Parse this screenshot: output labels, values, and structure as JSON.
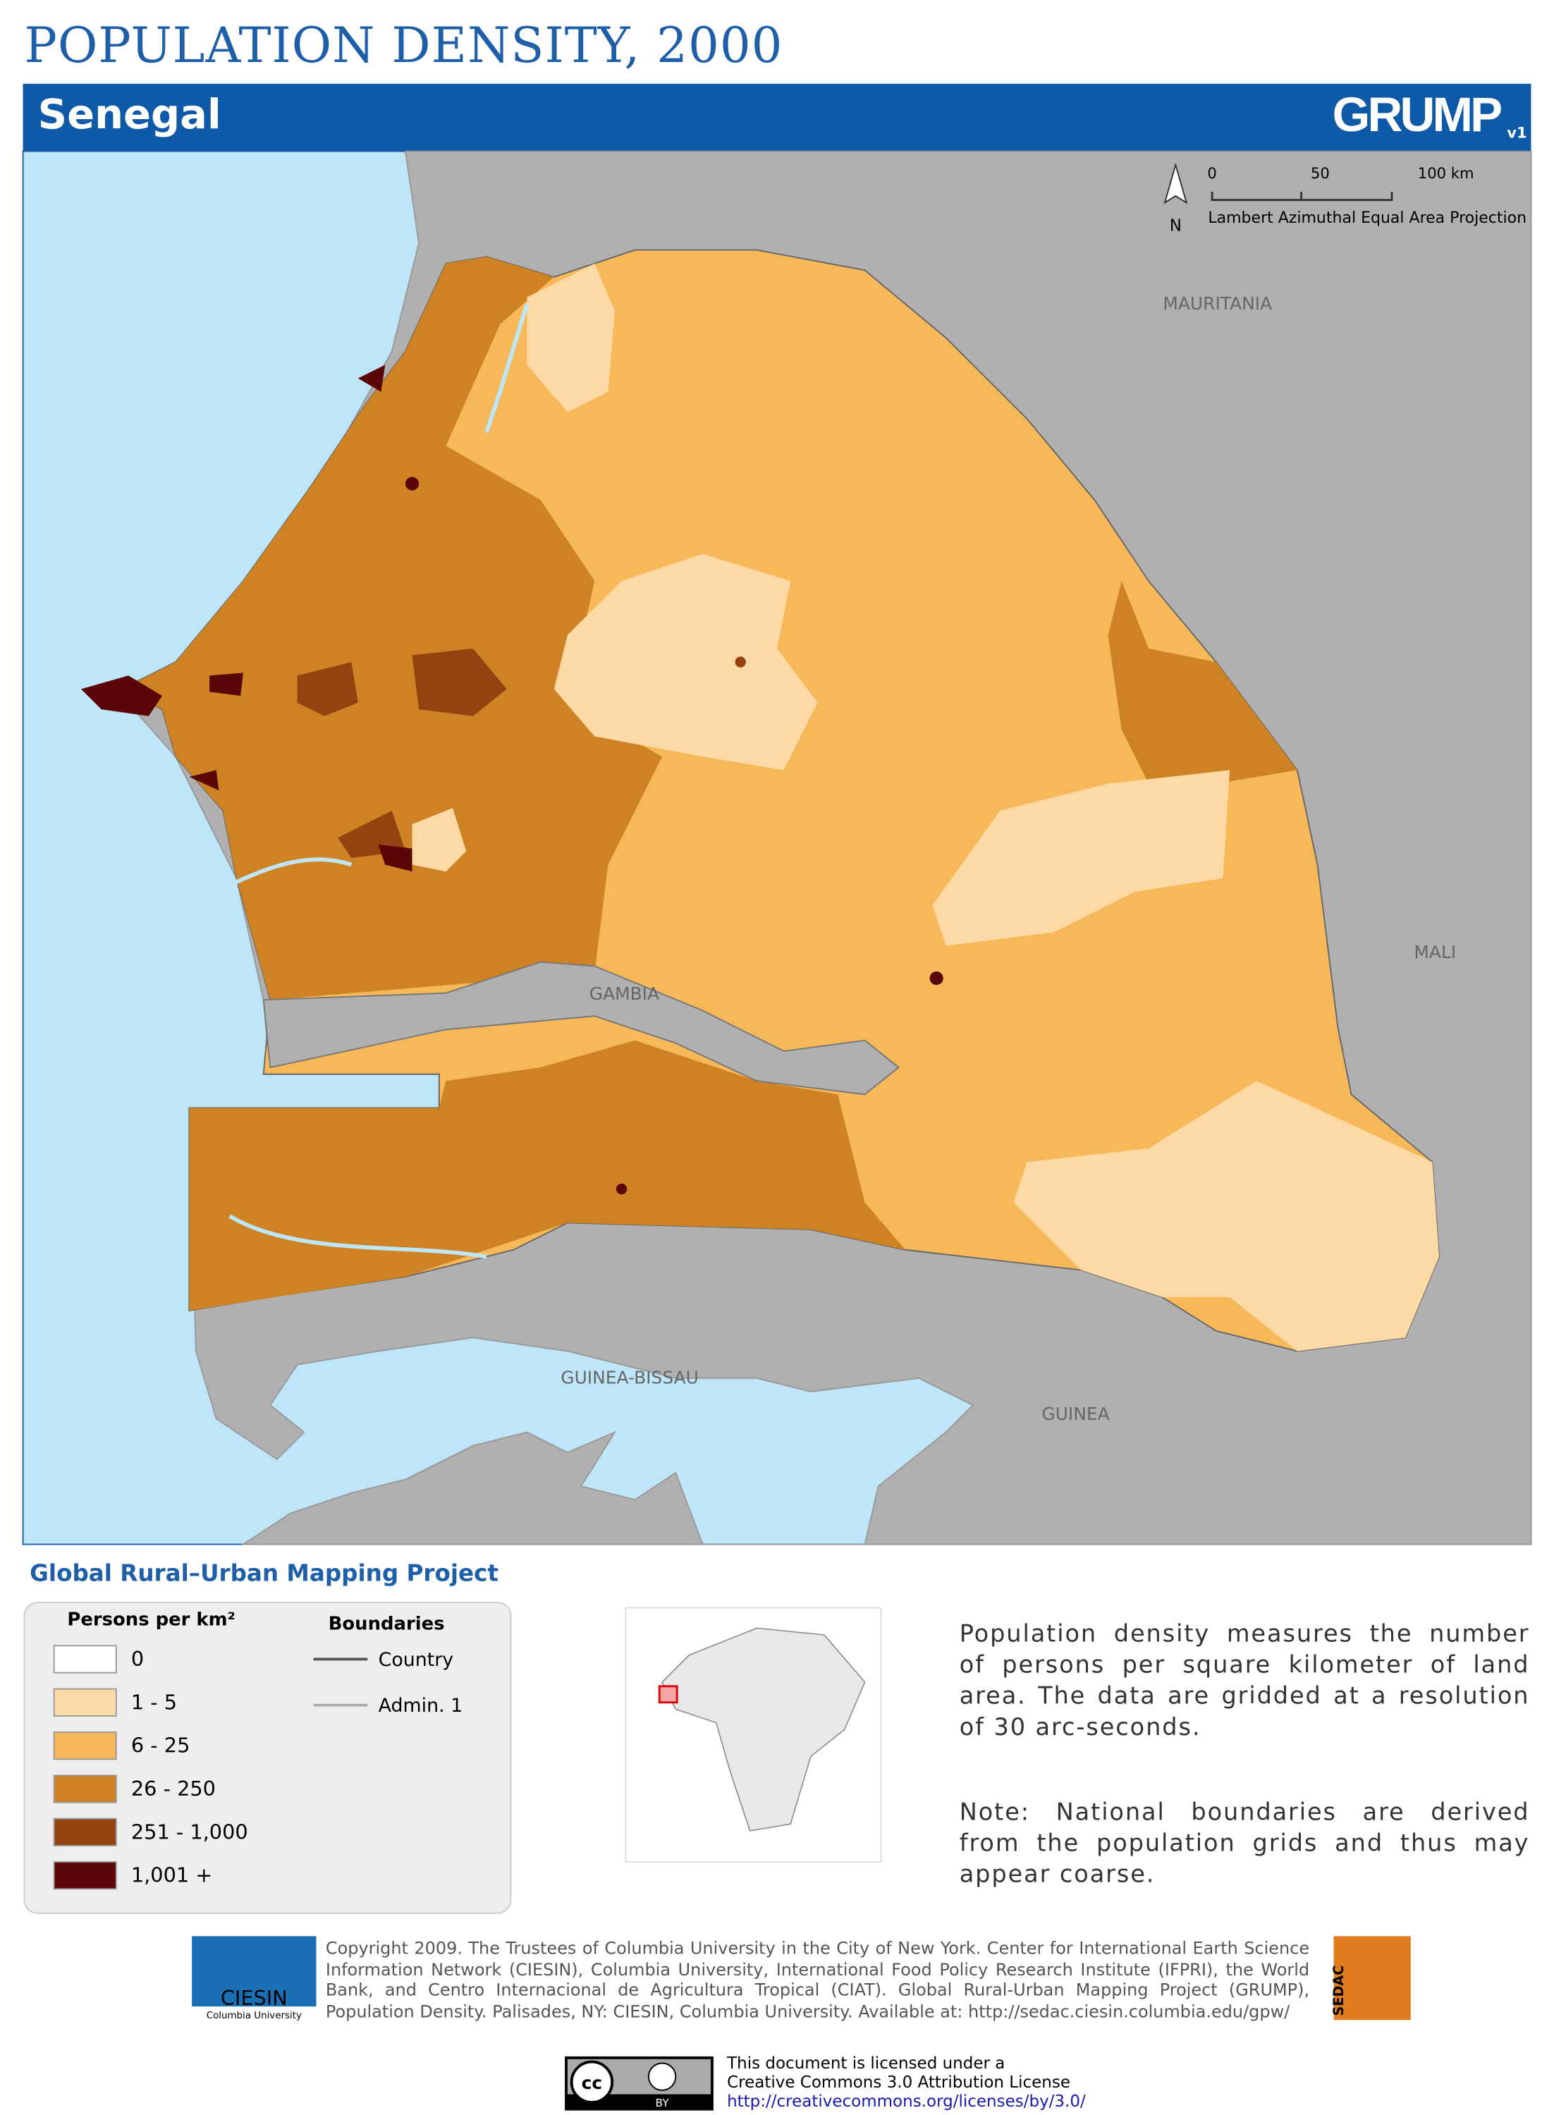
{
  "header": {
    "title": "POPULATION DENSITY, 2000",
    "subtitle": "Senegal",
    "logo": "GRUMP",
    "logo_version": "v1"
  },
  "map": {
    "north": "N",
    "scale_labels": [
      "0",
      "50",
      "100 km"
    ],
    "projection": "Lambert Azimuthal Equal Area Projection",
    "labels": {
      "mauritania": "MAURITANIA",
      "mali": "MALI",
      "gambia": "GAMBIA",
      "guinea_bissau": "GUINEA-BISSAU",
      "guinea": "GUINEA"
    }
  },
  "legend": {
    "project": "Global Rural–Urban Mapping Project",
    "density_title": "Persons per km²",
    "boundaries_title": "Boundaries",
    "classes": [
      {
        "label": "0",
        "color": "#ffffff"
      },
      {
        "label": "1 - 5",
        "color": "#fdd9a5"
      },
      {
        "label": "6 - 25",
        "color": "#f7b85a"
      },
      {
        "label": "26 - 250",
        "color": "#cf8224"
      },
      {
        "label": "251 - 1,000",
        "color": "#94420f"
      },
      {
        "label": "1,001 +",
        "color": "#5a0606"
      }
    ],
    "boundaries": [
      {
        "label": "Country",
        "color": "#555555"
      },
      {
        "label": "Admin. 1",
        "color": "#aaaaaa"
      }
    ]
  },
  "description": "Population density measures the number of persons per square kilometer of land area. The data are gridded at a resolution of 30 arc-seconds.",
  "note": "Note: National boundaries are derived from the population grids and thus may appear coarse.",
  "footer": {
    "copyright": "Copyright 2009. The Trustees of Columbia University in the City of New York. Center for International Earth Science Information Network (CIESIN), Columbia University, International Food Policy Research Institute (IFPRI), the World Bank, and Centro Internacional de Agricultura Tropical (CIAT). Global Rural-Urban Mapping Project (GRUMP), Population Density. Palisades, NY: CIESIN, Columbia University. Available at: http://sedac.ciesin.columbia.edu/gpw/",
    "ciesin": "CIESIN",
    "ciesin_sub": "Columbia University",
    "sedac": "SEDAC",
    "license_lines": [
      "This document is licensed under a",
      "Creative Commons 3.0 Attribution License",
      "http://creativecommons.org/licenses/by/3.0/"
    ],
    "cc": "cc",
    "by": "BY"
  }
}
